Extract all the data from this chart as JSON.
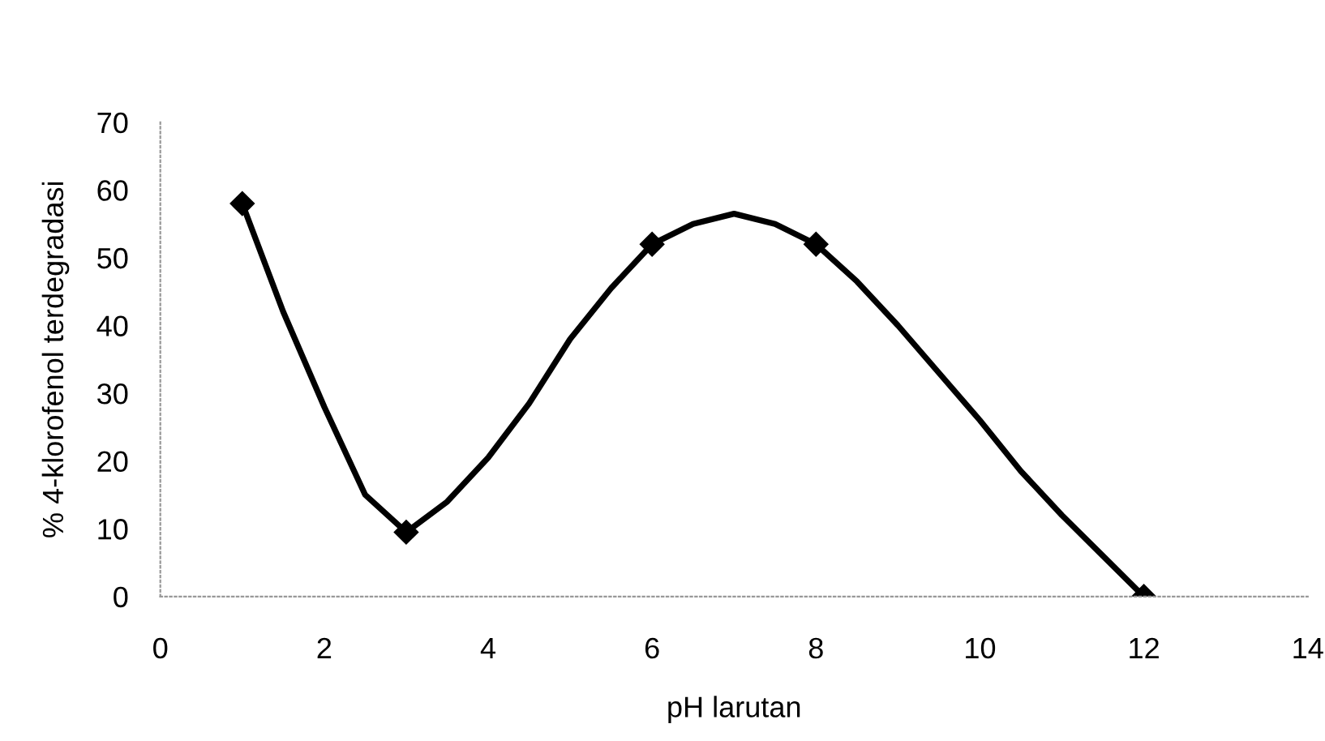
{
  "chart_data": {
    "type": "line",
    "xlabel": "pH larutan",
    "ylabel": "% 4-klorofenol terdegradasi",
    "series": [
      {
        "marker": "none",
        "color": "#000000",
        "x": [
          1,
          1.5,
          2,
          2.5,
          3,
          3.5,
          4,
          4.5,
          5,
          5.5,
          6,
          6.5,
          7,
          7.5,
          8,
          8.5,
          9,
          9.5,
          10,
          10.5,
          11,
          11.5,
          12
        ],
        "values": [
          58,
          42,
          28,
          15,
          9.5,
          14,
          20.5,
          28.5,
          38,
          45.5,
          52,
          55,
          56.5,
          55,
          52,
          46.5,
          40,
          33,
          26,
          18.5,
          12,
          6,
          0
        ]
      },
      {
        "type": "scatter",
        "color": "#000000",
        "x": [
          1,
          3,
          6,
          8,
          12
        ],
        "values": [
          58,
          9.5,
          52,
          52,
          0
        ]
      }
    ],
    "xlim": [
      0,
      14
    ],
    "xticks": [
      0,
      2,
      4,
      6,
      8,
      10,
      12,
      14
    ],
    "ylim": [
      0,
      70
    ],
    "yticks": [
      0,
      10,
      20,
      30,
      40,
      50,
      60,
      70
    ],
    "grid": false,
    "legend": false,
    "marker": "diamond",
    "line_style": "solid"
  }
}
